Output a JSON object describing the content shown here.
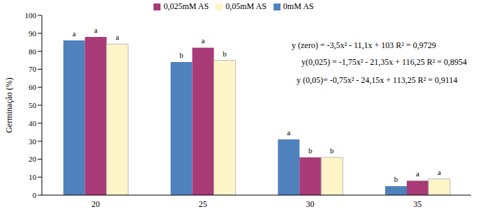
{
  "chart_data": {
    "type": "bar",
    "y_label": "Germinação (%)",
    "categories": [
      "20",
      "25",
      "30",
      "35"
    ],
    "series": [
      {
        "name": "0mM AS",
        "color": "#4f81bd",
        "values": [
          86,
          74,
          31,
          5
        ],
        "letters": [
          "a",
          "b",
          "a",
          "b"
        ]
      },
      {
        "name": "0,025mM AS",
        "color": "#a93a78",
        "values": [
          88,
          82,
          21,
          8
        ],
        "letters": [
          "a",
          "a",
          "b",
          "a"
        ]
      },
      {
        "name": "0,05mM AS",
        "color": "#fff5c8",
        "values": [
          84,
          75,
          21,
          9
        ],
        "letters": [
          "a",
          "b",
          "b",
          "a"
        ]
      }
    ],
    "annotations": [
      "y (zero) = -3,5x² - 11,1x + 103 R² = 0,9729",
      "y(0,025) = -1,75x² - 21,35x + 116,25 R² = 0,8954",
      "y (0,05)= -0,75x² - 24,15x + 113,25 R² = 0,9114"
    ],
    "ylim": [
      0,
      100
    ],
    "yticks": [
      0,
      10,
      20,
      30,
      40,
      50,
      60,
      70,
      80,
      90,
      100
    ],
    "grid": false,
    "legend": "top"
  }
}
